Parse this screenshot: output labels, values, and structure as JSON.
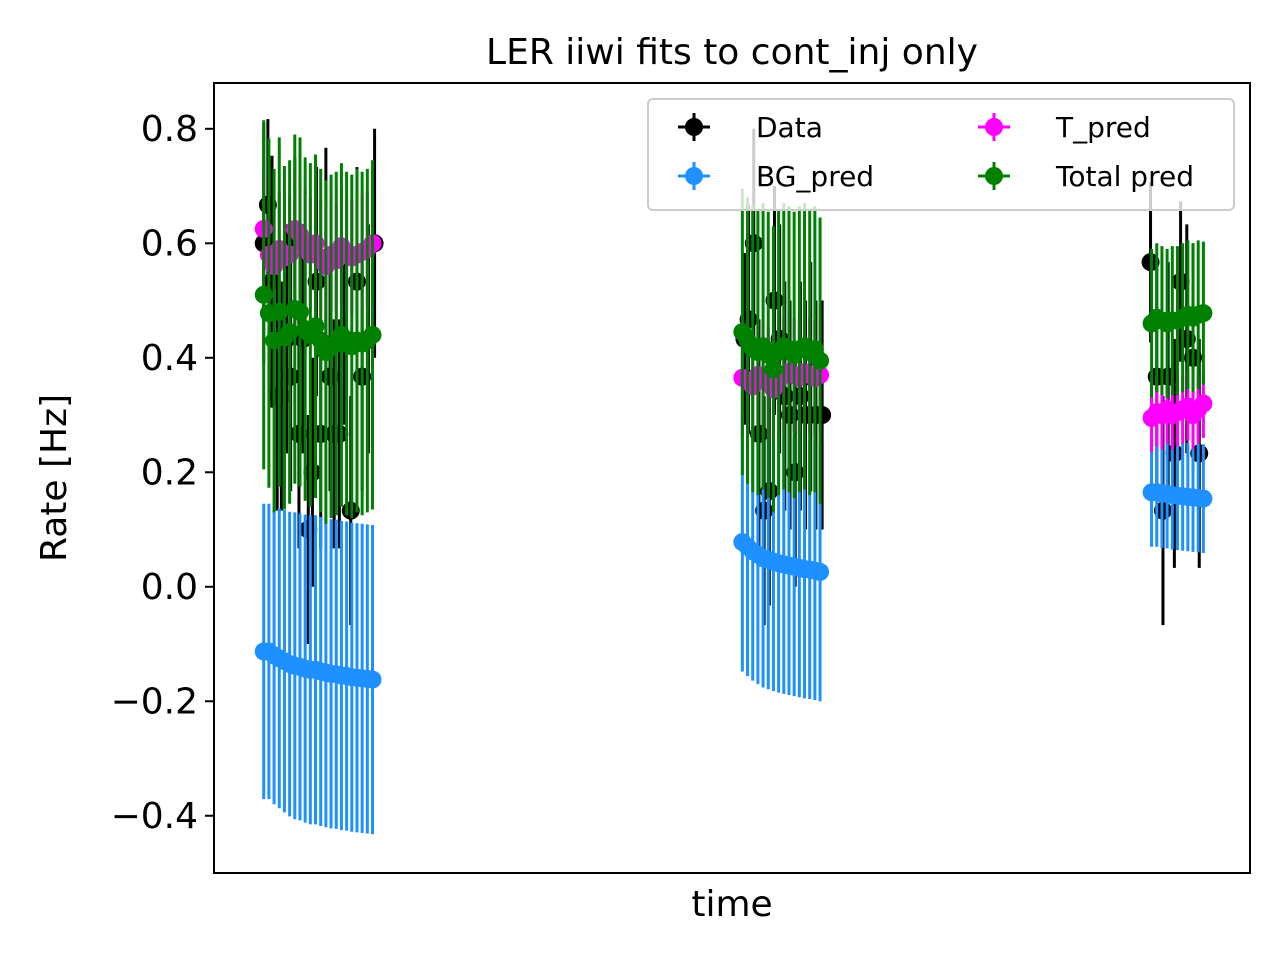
{
  "chart_data": {
    "type": "scatter",
    "title": "LER iiwi fits to cont_inj only",
    "xlabel": "time",
    "ylabel": "Rate [Hz]",
    "ylim": [
      -0.5,
      0.88
    ],
    "xlim": [
      0,
      100
    ],
    "yticks": [
      0.8,
      0.6,
      0.4,
      0.2,
      0.0,
      -0.2,
      -0.4
    ],
    "ytick_labels": [
      "0.8",
      "0.6",
      "0.4",
      "0.2",
      "0.0",
      "−0.2",
      "−0.4"
    ],
    "show_xticks": false,
    "grid": false,
    "legend": {
      "position": "top-right",
      "columns": 2
    },
    "series": [
      {
        "name": "Data",
        "color": "#000000",
        "x": [
          4.8,
          5.2,
          5.6,
          6.1,
          6.5,
          7.0,
          7.4,
          7.8,
          8.2,
          8.6,
          9.1,
          9.5,
          9.9,
          10.3,
          10.8,
          11.2,
          11.6,
          12.1,
          12.6,
          13.2,
          13.8,
          14.3,
          14.9,
          15.5,
          51.2,
          51.6,
          52.1,
          52.6,
          53.1,
          53.6,
          54.1,
          54.6,
          55.1,
          55.6,
          56.1,
          56.6,
          57.1,
          57.6,
          58.1,
          58.7,
          90.4,
          91.0,
          91.6,
          92.1,
          92.7,
          93.3,
          93.9,
          94.5,
          95.1
        ],
        "y": [
          0.6,
          0.667,
          0.533,
          0.333,
          0.333,
          0.433,
          0.367,
          0.6,
          0.267,
          0.433,
          0.1,
          0.2,
          0.533,
          0.267,
          0.567,
          0.367,
          0.267,
          0.267,
          0.433,
          0.133,
          0.533,
          0.367,
          0.433,
          0.6,
          0.433,
          0.467,
          0.6,
          0.267,
          0.133,
          0.167,
          0.5,
          0.433,
          0.333,
          0.3,
          0.2,
          0.333,
          0.3,
          0.367,
          0.3,
          0.3,
          0.567,
          0.367,
          0.133,
          0.367,
          0.233,
          0.533,
          0.433,
          0.4,
          0.233
        ],
        "yerr": [
          0.21,
          0.15,
          0.22,
          0.2,
          0.2,
          0.2,
          0.2,
          0.15,
          0.2,
          0.2,
          0.2,
          0.2,
          0.2,
          0.2,
          0.2,
          0.2,
          0.2,
          0.2,
          0.15,
          0.2,
          0.2,
          0.2,
          0.2,
          0.2,
          0.15,
          0.2,
          0.2,
          0.2,
          0.2,
          0.2,
          0.2,
          0.2,
          0.2,
          0.2,
          0.2,
          0.2,
          0.2,
          0.2,
          0.2,
          0.2,
          0.14,
          0.2,
          0.2,
          0.2,
          0.2,
          0.14,
          0.2,
          0.2,
          0.2
        ]
      },
      {
        "name": "BG_pred",
        "color": "#1e90ff",
        "x": [
          4.8,
          5.3,
          5.8,
          6.3,
          6.8,
          7.3,
          7.8,
          8.3,
          8.8,
          9.3,
          9.8,
          10.3,
          10.8,
          11.3,
          11.8,
          12.3,
          12.8,
          13.3,
          13.8,
          14.3,
          14.8,
          15.3,
          51.0,
          51.5,
          52.0,
          52.5,
          53.0,
          53.5,
          54.0,
          54.5,
          55.0,
          55.5,
          56.0,
          56.5,
          57.0,
          57.5,
          58.0,
          58.5,
          90.5,
          91.0,
          91.5,
          92.0,
          92.5,
          93.0,
          93.5,
          94.0,
          94.5,
          95.0,
          95.5
        ],
        "y": [
          -0.113,
          -0.113,
          -0.12,
          -0.125,
          -0.13,
          -0.135,
          -0.138,
          -0.14,
          -0.143,
          -0.145,
          -0.145,
          -0.148,
          -0.15,
          -0.152,
          -0.153,
          -0.155,
          -0.156,
          -0.158,
          -0.159,
          -0.16,
          -0.161,
          -0.162,
          0.078,
          0.07,
          0.062,
          0.056,
          0.05,
          0.047,
          0.044,
          0.041,
          0.039,
          0.037,
          0.035,
          0.033,
          0.031,
          0.03,
          0.028,
          0.026,
          0.165,
          0.165,
          0.163,
          0.162,
          0.16,
          0.159,
          0.158,
          0.157,
          0.156,
          0.155,
          0.154
        ],
        "yerr": [
          0.258,
          0.258,
          0.26,
          0.262,
          0.264,
          0.266,
          0.268,
          0.268,
          0.269,
          0.27,
          0.27,
          0.27,
          0.27,
          0.27,
          0.27,
          0.27,
          0.27,
          0.27,
          0.27,
          0.27,
          0.27,
          0.27,
          0.226,
          0.226,
          0.226,
          0.226,
          0.226,
          0.226,
          0.226,
          0.226,
          0.226,
          0.226,
          0.226,
          0.226,
          0.226,
          0.226,
          0.226,
          0.226,
          0.095,
          0.095,
          0.095,
          0.095,
          0.095,
          0.095,
          0.095,
          0.095,
          0.095,
          0.095,
          0.095
        ]
      },
      {
        "name": "T_pred",
        "color": "#ff00ff",
        "x": [
          4.8,
          5.3,
          5.8,
          6.3,
          6.8,
          7.3,
          7.8,
          8.3,
          8.8,
          9.3,
          9.8,
          10.3,
          10.8,
          11.3,
          11.8,
          12.3,
          12.8,
          13.3,
          13.8,
          14.3,
          14.8,
          15.3,
          51.0,
          51.5,
          52.0,
          52.5,
          53.0,
          53.5,
          54.0,
          54.5,
          55.0,
          55.5,
          56.0,
          56.5,
          57.0,
          57.5,
          58.0,
          58.5,
          90.5,
          91.0,
          91.5,
          92.0,
          92.5,
          93.0,
          93.5,
          94.0,
          94.5,
          95.0,
          95.5
        ],
        "y": [
          0.625,
          0.58,
          0.56,
          0.59,
          0.575,
          0.58,
          0.625,
          0.615,
          0.595,
          0.58,
          0.6,
          0.575,
          0.56,
          0.58,
          0.57,
          0.595,
          0.58,
          0.575,
          0.58,
          0.585,
          0.59,
          0.6,
          0.365,
          0.36,
          0.35,
          0.37,
          0.365,
          0.355,
          0.345,
          0.36,
          0.37,
          0.375,
          0.37,
          0.365,
          0.375,
          0.37,
          0.365,
          0.37,
          0.295,
          0.305,
          0.3,
          0.31,
          0.3,
          0.305,
          0.31,
          0.315,
          0.3,
          0.31,
          0.32
        ],
        "yerr": [
          0.1,
          0.1,
          0.1,
          0.1,
          0.1,
          0.1,
          0.1,
          0.1,
          0.1,
          0.1,
          0.1,
          0.1,
          0.1,
          0.1,
          0.1,
          0.1,
          0.1,
          0.1,
          0.1,
          0.1,
          0.1,
          0.1,
          0.1,
          0.1,
          0.1,
          0.1,
          0.1,
          0.1,
          0.1,
          0.1,
          0.1,
          0.1,
          0.1,
          0.1,
          0.1,
          0.1,
          0.1,
          0.1,
          0.06,
          0.06,
          0.06,
          0.06,
          0.06,
          0.06,
          0.06,
          0.06,
          0.06,
          0.06,
          0.06
        ]
      },
      {
        "name": "Total pred",
        "color": "#008000",
        "x": [
          4.8,
          5.3,
          5.8,
          6.3,
          6.8,
          7.3,
          7.8,
          8.3,
          8.8,
          9.3,
          9.8,
          10.3,
          10.8,
          11.3,
          11.8,
          12.3,
          12.8,
          13.3,
          13.8,
          14.3,
          14.8,
          15.3,
          51.0,
          51.5,
          52.0,
          52.5,
          53.0,
          53.5,
          54.0,
          54.5,
          55.0,
          55.5,
          56.0,
          56.5,
          57.0,
          57.5,
          58.0,
          58.5,
          90.5,
          91.0,
          91.5,
          92.0,
          92.5,
          93.0,
          93.5,
          94.0,
          94.5,
          95.0,
          95.5
        ],
        "y": [
          0.51,
          0.478,
          0.43,
          0.48,
          0.435,
          0.445,
          0.485,
          0.48,
          0.45,
          0.44,
          0.455,
          0.43,
          0.41,
          0.42,
          0.425,
          0.44,
          0.425,
          0.42,
          0.43,
          0.425,
          0.43,
          0.44,
          0.445,
          0.43,
          0.415,
          0.41,
          0.42,
          0.405,
          0.38,
          0.41,
          0.42,
          0.415,
          0.405,
          0.415,
          0.42,
          0.41,
          0.415,
          0.395,
          0.46,
          0.47,
          0.465,
          0.46,
          0.465,
          0.465,
          0.47,
          0.475,
          0.47,
          0.475,
          0.478
        ],
        "yerr": [
          0.305,
          0.305,
          0.3,
          0.305,
          0.3,
          0.3,
          0.305,
          0.305,
          0.3,
          0.3,
          0.3,
          0.3,
          0.3,
          0.3,
          0.3,
          0.3,
          0.3,
          0.3,
          0.3,
          0.3,
          0.3,
          0.305,
          0.25,
          0.25,
          0.25,
          0.25,
          0.25,
          0.25,
          0.25,
          0.25,
          0.25,
          0.25,
          0.25,
          0.25,
          0.25,
          0.25,
          0.25,
          0.25,
          0.13,
          0.13,
          0.13,
          0.13,
          0.13,
          0.13,
          0.13,
          0.13,
          0.13,
          0.13,
          0.125
        ]
      }
    ]
  }
}
